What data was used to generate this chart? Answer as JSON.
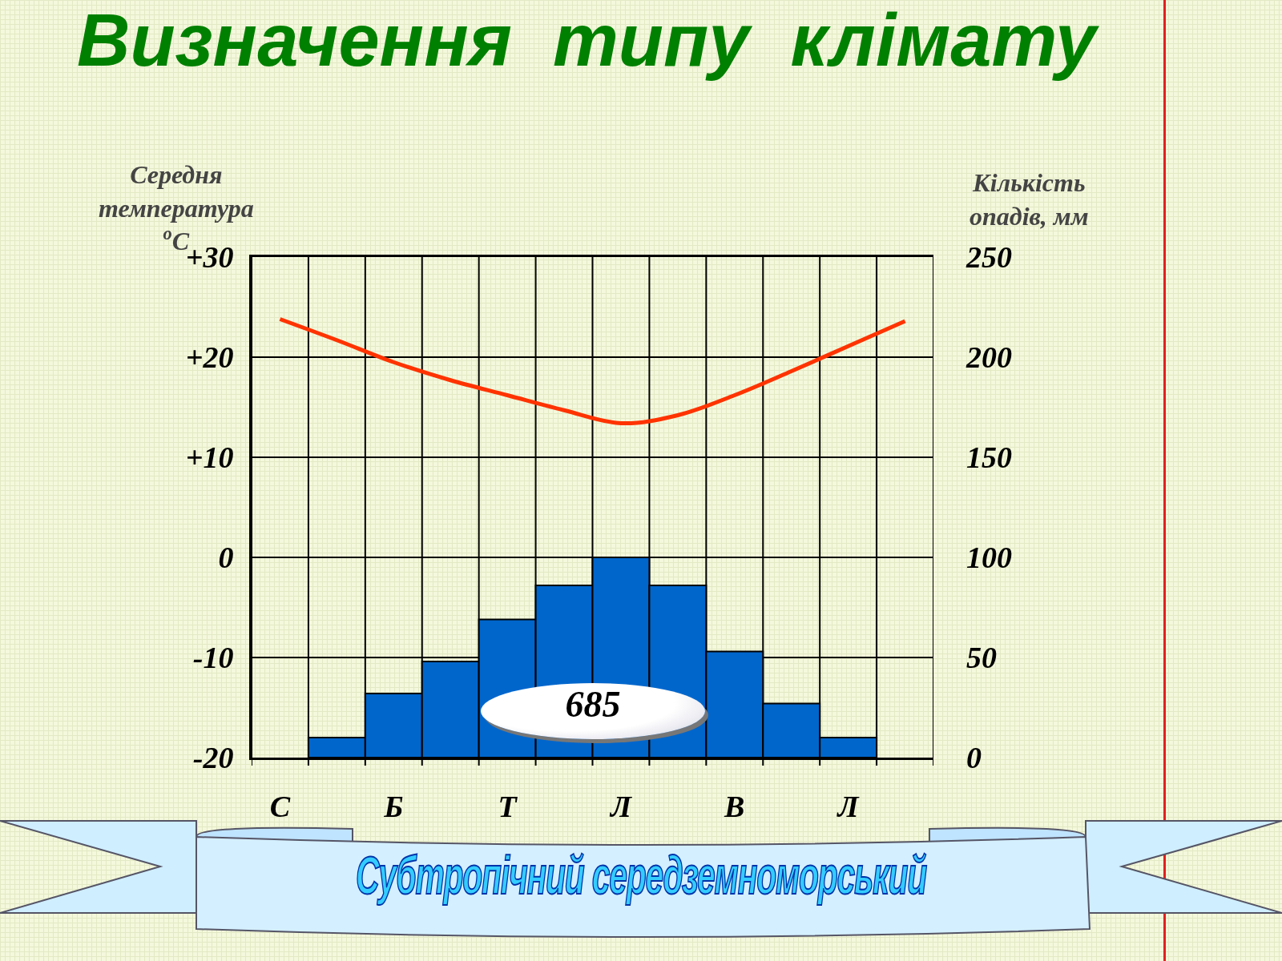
{
  "chart_data": {
    "type": "bar",
    "title": "Визначення  типу  клімату",
    "subtitle": "Субтропічний середземноморський",
    "ylabel": "Середня температура $^{o}$C",
    "y2label": "Кількість опадів, мм",
    "categories": [
      "С",
      null,
      "Б",
      null,
      "Т",
      null,
      "Л",
      null,
      "В",
      null,
      "Л",
      null
    ],
    "ylim": [
      -20,
      30
    ],
    "yticks": [
      -20,
      -10,
      0,
      {
        "value": 10,
        "label": "+10"
      },
      {
        "value": 20,
        "label": "+20"
      },
      {
        "value": 30,
        "label": "+30"
      }
    ],
    "y2lim": [
      0,
      250
    ],
    "y2ticks": [
      0,
      50,
      100,
      150,
      200,
      250
    ],
    "series": [
      {
        "axis": "y2",
        "color": "#0066cc",
        "values": [
          null,
          10,
          32,
          48,
          69,
          86,
          100,
          86,
          53,
          27,
          10,
          null
        ]
      },
      {
        "type": "line",
        "axis": "y",
        "color": "#ff3300",
        "values": [
          23.8,
          21.7,
          19.5,
          17.7,
          16.2,
          14.7,
          13.4,
          14.2,
          16.2,
          18.6,
          21.1,
          23.6
        ]
      }
    ],
    "annotations": [
      "685"
    ],
    "grid": true,
    "marker": "none",
    "line_style": "solid"
  }
}
